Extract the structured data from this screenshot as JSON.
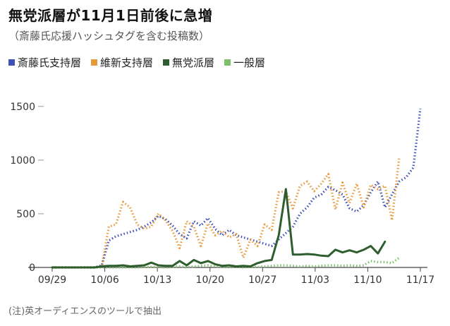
{
  "header": {
    "title": "無党派層が11月1日前後に急増",
    "subtitle": "（斎藤氏応援ハッシュタグを含む投稿数）"
  },
  "footer": {
    "note": "(注)英オーディエンスのツールで抽出"
  },
  "chart_data": {
    "type": "line",
    "title": "無党派層が11月1日前後に急増",
    "subtitle": "（斎藤氏応援ハッシュタグを含む投稿数）",
    "xlabel": "",
    "ylabel": "",
    "x_tick_labels": [
      "09/29",
      "10/06",
      "10/13",
      "10/20",
      "10/27",
      "11/03",
      "11/10",
      "11/17"
    ],
    "y_ticks": [
      0,
      500,
      1000,
      1500
    ],
    "ylim": [
      0,
      1650
    ],
    "grid": false,
    "legend_position": "top",
    "series": [
      {
        "name": "斎藤氏支持層",
        "color": "#3f51b5",
        "style": "dotted",
        "values": [
          0,
          0,
          0,
          0,
          0,
          0,
          0,
          20,
          250,
          290,
          310,
          330,
          350,
          380,
          420,
          480,
          450,
          390,
          310,
          270,
          430,
          390,
          460,
          360,
          300,
          350,
          300,
          280,
          260,
          240,
          220,
          200,
          260,
          320,
          380,
          500,
          560,
          650,
          680,
          750,
          720,
          680,
          550,
          520,
          580,
          700,
          800,
          560,
          680,
          800,
          840,
          930,
          1480
        ]
      },
      {
        "name": "維新支持層",
        "color": "#e69a3c",
        "style": "dotted",
        "values": [
          0,
          0,
          0,
          0,
          0,
          0,
          0,
          10,
          380,
          400,
          610,
          560,
          400,
          360,
          380,
          500,
          440,
          340,
          180,
          430,
          380,
          200,
          410,
          300,
          340,
          280,
          310,
          90,
          260,
          200,
          400,
          350,
          700,
          710,
          550,
          760,
          800,
          710,
          780,
          870,
          540,
          790,
          600,
          780,
          560,
          770,
          730,
          760,
          440,
          1020
        ]
      },
      {
        "name": "無党派層",
        "color": "#2e5e2e",
        "style": "solid",
        "values": [
          0,
          0,
          0,
          0,
          0,
          0,
          0,
          10,
          15,
          15,
          20,
          10,
          15,
          20,
          45,
          20,
          15,
          15,
          60,
          20,
          70,
          40,
          60,
          30,
          15,
          20,
          10,
          15,
          10,
          40,
          60,
          70,
          300,
          730,
          120,
          120,
          125,
          120,
          110,
          105,
          165,
          140,
          160,
          140,
          165,
          200,
          130,
          240
        ]
      },
      {
        "name": "一般層",
        "color": "#7cc06a",
        "style": "dotted",
        "values": [
          0,
          0,
          0,
          0,
          0,
          0,
          0,
          0,
          0,
          0,
          0,
          0,
          0,
          5,
          5,
          5,
          0,
          5,
          10,
          0,
          10,
          15,
          20,
          10,
          5,
          10,
          5,
          0,
          5,
          5,
          10,
          15,
          20,
          20,
          15,
          10,
          15,
          10,
          15,
          20,
          20,
          15,
          20,
          15,
          20,
          60,
          50,
          50,
          40,
          90
        ]
      }
    ]
  }
}
